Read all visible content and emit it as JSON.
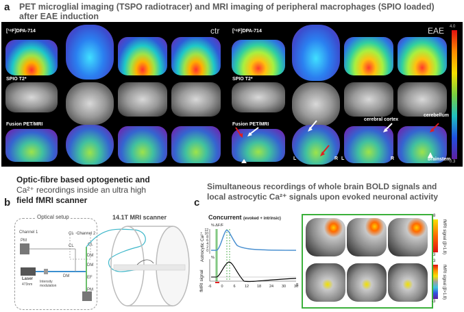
{
  "panel_a": {
    "letter": "a",
    "title_line1": "PET microglial imaging (TSPO radiotracer) and MRI imaging of peripheral macrophages (SPIO loaded)",
    "title_line2": "after EAE induction",
    "ctr_tag": "ctr",
    "eae_tag": "EAE",
    "row_label_pet": "[¹⁸F]DPA-714",
    "row_label_mri": "SPIO T2*",
    "row_label_fusion": "Fusion PET/MRI",
    "colorbar_max": "4.0",
    "colorbar_min": "0.3",
    "annot_cortex": "cerebral cortex",
    "annot_cerebellum": "cerebellum",
    "annot_brainstem": "brainstem",
    "annot_L": "L",
    "annot_R": "R"
  },
  "panel_b": {
    "letter": "b",
    "title_line1": "Optic-fibre based optogenetic  and",
    "title_line2": "Ca²⁺ recordings inside an ultra high",
    "title_line3": "field fMRI scanner",
    "optical_setup": "Optical setup",
    "scanner_label": "14.1T MRI scanner",
    "channel1": "Channel 1",
    "channel2": "Channel 2",
    "pm": "PM",
    "cl": "CL",
    "dm": "DM",
    "ef": "EF",
    "laser": "Laser",
    "laser_wl": "473nm",
    "intensity_mod": "Intensity modulation"
  },
  "panel_c": {
    "letter": "c",
    "title_line1": "Simultaneous recordings of whole brain BOLD signals and",
    "title_line2": "local astrocytic Ca²⁺ signals upon evoked neuronal activity",
    "concurrent": "Concurrent",
    "concurrent_sub": "(evoked + intrinsic)",
    "ylabel_top": "Astrocytic Ca²⁺",
    "ylabel_bottom": "fMRI signal",
    "df_label": "% ΔF/F",
    "pct": "%",
    "top_ticks": [
      "12",
      "10",
      "8",
      "6",
      "4",
      "2",
      "0"
    ],
    "x_ticks": [
      "-6",
      "0",
      "6",
      "12",
      "18",
      "24",
      "30",
      "36"
    ],
    "x_unit": "s",
    "cb_top_max": "8",
    "cb_top_min": "3",
    "cb_top_label": "fMRI signal (β>1.8)",
    "cb_bot_max": "3",
    "cb_bot_min": "-3",
    "cb_bot_label": "fMRI signal (β>1.8)"
  }
}
